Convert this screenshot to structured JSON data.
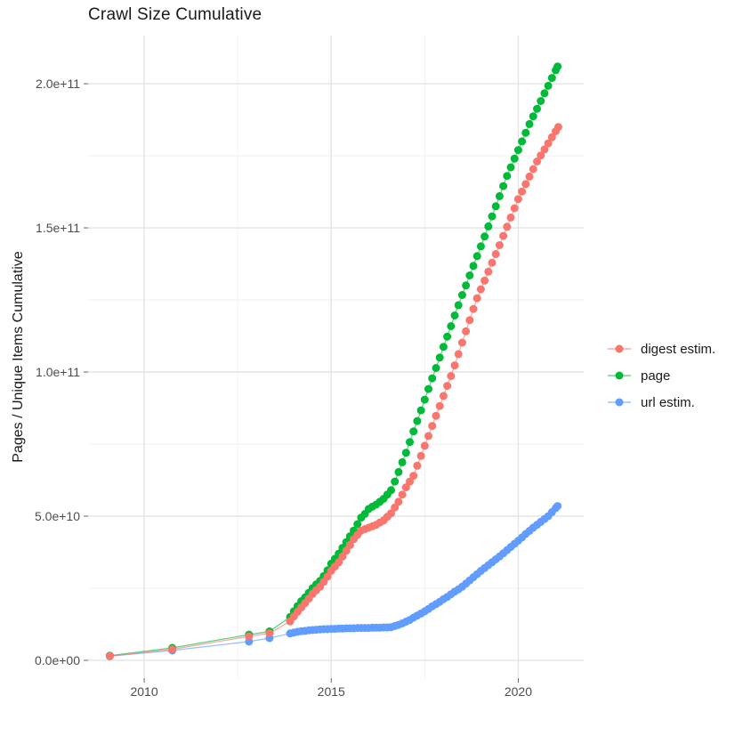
{
  "chart_data": {
    "type": "scatter",
    "title": "Crawl Size Cumulative",
    "xlabel": "",
    "ylabel": "Pages / Unique Items Cumulative",
    "grid": true,
    "legend_position": "right",
    "value_unit": 1000000000.0,
    "x_range_years": [
      2008.5,
      2021.75
    ],
    "y_range_e9": [
      -6.2,
      216.7
    ],
    "x_ticks": {
      "labels": [
        "2010",
        "2015",
        "2020"
      ],
      "years": [
        2010,
        2015,
        2020
      ]
    },
    "x_minor_years": [
      2012.5,
      2017.5
    ],
    "y_ticks": {
      "labels": [
        "0.0e+00",
        "5.0e+10",
        "1.0e+11",
        "1.5e+11",
        "2.0e+11"
      ],
      "values_e9": [
        0,
        50,
        100,
        150,
        200
      ]
    },
    "y_minor_e9": [
      25,
      75,
      125,
      175
    ],
    "series": [
      {
        "name": "digest estim.",
        "color": "#F8766D",
        "points_year_e9": [
          [
            2009.08,
            1.5
          ],
          [
            2010.75,
            3.8
          ],
          [
            2012.8,
            8.3
          ],
          [
            2013.35,
            9.4
          ],
          [
            2013.9,
            13.5
          ],
          [
            2014.0,
            15.2
          ],
          [
            2014.1,
            16.8
          ],
          [
            2014.2,
            18.3
          ],
          [
            2014.3,
            19.8
          ],
          [
            2014.4,
            21.4
          ],
          [
            2014.5,
            23
          ],
          [
            2014.6,
            24.3
          ],
          [
            2014.7,
            25.5
          ],
          [
            2014.8,
            27.2
          ],
          [
            2014.9,
            29
          ],
          [
            2015.0,
            31
          ],
          [
            2015.1,
            32.5
          ],
          [
            2015.2,
            34
          ],
          [
            2015.3,
            36
          ],
          [
            2015.4,
            38
          ],
          [
            2015.5,
            40
          ],
          [
            2015.6,
            42
          ],
          [
            2015.7,
            43.5
          ],
          [
            2015.8,
            45
          ],
          [
            2015.9,
            45.5
          ],
          [
            2016.0,
            46
          ],
          [
            2016.1,
            46.5
          ],
          [
            2016.2,
            47
          ],
          [
            2016.3,
            47.8
          ],
          [
            2016.4,
            48.5
          ],
          [
            2016.5,
            49.8
          ],
          [
            2016.6,
            51
          ],
          [
            2016.7,
            53
          ],
          [
            2016.8,
            55
          ],
          [
            2016.9,
            57.5
          ],
          [
            2017.0,
            60
          ],
          [
            2017.1,
            62
          ],
          [
            2017.2,
            64
          ],
          [
            2017.3,
            67.5
          ],
          [
            2017.4,
            70.9
          ],
          [
            2017.5,
            74.4
          ],
          [
            2017.6,
            77.8
          ],
          [
            2017.7,
            81.3
          ],
          [
            2017.8,
            84.8
          ],
          [
            2017.9,
            88.2
          ],
          [
            2018.0,
            91.7
          ],
          [
            2018.1,
            95.2
          ],
          [
            2018.2,
            98.6
          ],
          [
            2018.3,
            102.3
          ],
          [
            2018.4,
            106.2
          ],
          [
            2018.5,
            110.2
          ],
          [
            2018.6,
            114.1
          ],
          [
            2018.7,
            118
          ],
          [
            2018.8,
            121.9
          ],
          [
            2018.9,
            125.6
          ],
          [
            2019.0,
            128.7
          ],
          [
            2019.1,
            131.7
          ],
          [
            2019.2,
            134.8
          ],
          [
            2019.3,
            137.9
          ],
          [
            2019.4,
            140.9
          ],
          [
            2019.5,
            144
          ],
          [
            2019.6,
            147.2
          ],
          [
            2019.7,
            150.4
          ],
          [
            2019.8,
            153.6
          ],
          [
            2019.9,
            156.8
          ],
          [
            2020.0,
            160
          ],
          [
            2020.1,
            162.6
          ],
          [
            2020.2,
            165.2
          ],
          [
            2020.3,
            167.8
          ],
          [
            2020.4,
            170.4
          ],
          [
            2020.5,
            173
          ],
          [
            2020.6,
            175.1
          ],
          [
            2020.7,
            177.2
          ],
          [
            2020.8,
            179.3
          ],
          [
            2020.9,
            181.4
          ],
          [
            2021.0,
            183.5
          ],
          [
            2021.07,
            185
          ]
        ]
      },
      {
        "name": "page",
        "color": "#00BA38",
        "points_year_e9": [
          [
            2009.08,
            1.6
          ],
          [
            2010.75,
            4.3
          ],
          [
            2012.8,
            8.9
          ],
          [
            2013.35,
            10
          ],
          [
            2013.9,
            15
          ],
          [
            2014.0,
            17
          ],
          [
            2014.1,
            18.8
          ],
          [
            2014.2,
            20.5
          ],
          [
            2014.3,
            21.8
          ],
          [
            2014.4,
            23.4
          ],
          [
            2014.5,
            25
          ],
          [
            2014.6,
            26.3
          ],
          [
            2014.7,
            27.5
          ],
          [
            2014.8,
            29.2
          ],
          [
            2014.9,
            31.2
          ],
          [
            2015.0,
            33.5
          ],
          [
            2015.1,
            35.2
          ],
          [
            2015.2,
            37
          ],
          [
            2015.3,
            39
          ],
          [
            2015.4,
            41
          ],
          [
            2015.5,
            43
          ],
          [
            2015.6,
            45
          ],
          [
            2015.7,
            47.2
          ],
          [
            2015.8,
            49.5
          ],
          [
            2015.9,
            50.8
          ],
          [
            2016.0,
            52.5
          ],
          [
            2016.1,
            53.3
          ],
          [
            2016.2,
            54
          ],
          [
            2016.3,
            55
          ],
          [
            2016.4,
            56
          ],
          [
            2016.5,
            57.5
          ],
          [
            2016.6,
            59
          ],
          [
            2016.7,
            62
          ],
          [
            2016.8,
            65.3
          ],
          [
            2016.9,
            68.7
          ],
          [
            2017.0,
            72
          ],
          [
            2017.1,
            75.7
          ],
          [
            2017.2,
            79.4
          ],
          [
            2017.3,
            83
          ],
          [
            2017.4,
            86.7
          ],
          [
            2017.5,
            90.4
          ],
          [
            2017.6,
            94.1
          ],
          [
            2017.7,
            97.8
          ],
          [
            2017.8,
            101.4
          ],
          [
            2017.9,
            105
          ],
          [
            2018.0,
            108.7
          ],
          [
            2018.1,
            112.3
          ],
          [
            2018.2,
            115.9
          ],
          [
            2018.3,
            119.6
          ],
          [
            2018.4,
            123.2
          ],
          [
            2018.5,
            126.7
          ],
          [
            2018.6,
            130
          ],
          [
            2018.7,
            133.5
          ],
          [
            2018.8,
            136.8
          ],
          [
            2018.9,
            140.2
          ],
          [
            2019.0,
            143.6
          ],
          [
            2019.1,
            147
          ],
          [
            2019.2,
            150.5
          ],
          [
            2019.3,
            154
          ],
          [
            2019.4,
            157.5
          ],
          [
            2019.5,
            161
          ],
          [
            2019.6,
            164.5
          ],
          [
            2019.7,
            168
          ],
          [
            2019.8,
            171
          ],
          [
            2019.9,
            174
          ],
          [
            2020.0,
            177
          ],
          [
            2020.1,
            180
          ],
          [
            2020.2,
            183
          ],
          [
            2020.3,
            186
          ],
          [
            2020.4,
            188.7
          ],
          [
            2020.5,
            191.3
          ],
          [
            2020.6,
            194
          ],
          [
            2020.7,
            196.7
          ],
          [
            2020.8,
            199.3
          ],
          [
            2020.9,
            202
          ],
          [
            2021.0,
            204.7
          ],
          [
            2021.05,
            206
          ]
        ]
      },
      {
        "name": "url estim.",
        "color": "#619CFF",
        "points_year_e9": [
          [
            2009.08,
            1.4
          ],
          [
            2010.75,
            3.4
          ],
          [
            2012.8,
            6.5
          ],
          [
            2013.35,
            7.7
          ],
          [
            2013.9,
            9.3
          ],
          [
            2014.0,
            9.6
          ],
          [
            2014.1,
            9.9
          ],
          [
            2014.2,
            10.1
          ],
          [
            2014.3,
            10.2
          ],
          [
            2014.4,
            10.4
          ],
          [
            2014.5,
            10.5
          ],
          [
            2014.6,
            10.6
          ],
          [
            2014.7,
            10.7
          ],
          [
            2014.8,
            10.8
          ],
          [
            2014.9,
            10.8
          ],
          [
            2015.0,
            10.9
          ],
          [
            2015.1,
            10.9
          ],
          [
            2015.2,
            11
          ],
          [
            2015.3,
            11
          ],
          [
            2015.4,
            11.1
          ],
          [
            2015.5,
            11.1
          ],
          [
            2015.6,
            11.1
          ],
          [
            2015.7,
            11.2
          ],
          [
            2015.8,
            11.2
          ],
          [
            2015.9,
            11.2
          ],
          [
            2016.0,
            11.2
          ],
          [
            2016.1,
            11.3
          ],
          [
            2016.2,
            11.3
          ],
          [
            2016.3,
            11.3
          ],
          [
            2016.4,
            11.4
          ],
          [
            2016.5,
            11.4
          ],
          [
            2016.6,
            11.5
          ],
          [
            2016.7,
            11.9
          ],
          [
            2016.8,
            12.3
          ],
          [
            2016.9,
            12.8
          ],
          [
            2017.0,
            13.4
          ],
          [
            2017.1,
            14
          ],
          [
            2017.2,
            14.8
          ],
          [
            2017.3,
            15.5
          ],
          [
            2017.4,
            16.2
          ],
          [
            2017.5,
            17
          ],
          [
            2017.6,
            17.8
          ],
          [
            2017.7,
            18.7
          ],
          [
            2017.8,
            19.5
          ],
          [
            2017.9,
            20.3
          ],
          [
            2018.0,
            21.2
          ],
          [
            2018.1,
            22
          ],
          [
            2018.2,
            22.9
          ],
          [
            2018.3,
            23.8
          ],
          [
            2018.4,
            24.6
          ],
          [
            2018.5,
            25.5
          ],
          [
            2018.6,
            26.6
          ],
          [
            2018.7,
            27.7
          ],
          [
            2018.8,
            28.8
          ],
          [
            2018.9,
            29.9
          ],
          [
            2019.0,
            31
          ],
          [
            2019.1,
            32
          ],
          [
            2019.2,
            33
          ],
          [
            2019.3,
            34
          ],
          [
            2019.4,
            35
          ],
          [
            2019.5,
            36
          ],
          [
            2019.6,
            37.1
          ],
          [
            2019.7,
            38.2
          ],
          [
            2019.8,
            39.3
          ],
          [
            2019.9,
            40.4
          ],
          [
            2020.0,
            41.5
          ],
          [
            2020.1,
            42.6
          ],
          [
            2020.2,
            43.8
          ],
          [
            2020.3,
            44.9
          ],
          [
            2020.4,
            46
          ],
          [
            2020.5,
            47
          ],
          [
            2020.6,
            48
          ],
          [
            2020.7,
            49
          ],
          [
            2020.8,
            50
          ],
          [
            2020.9,
            51.4
          ],
          [
            2021.0,
            52.8
          ],
          [
            2021.05,
            53.5
          ]
        ]
      }
    ]
  }
}
